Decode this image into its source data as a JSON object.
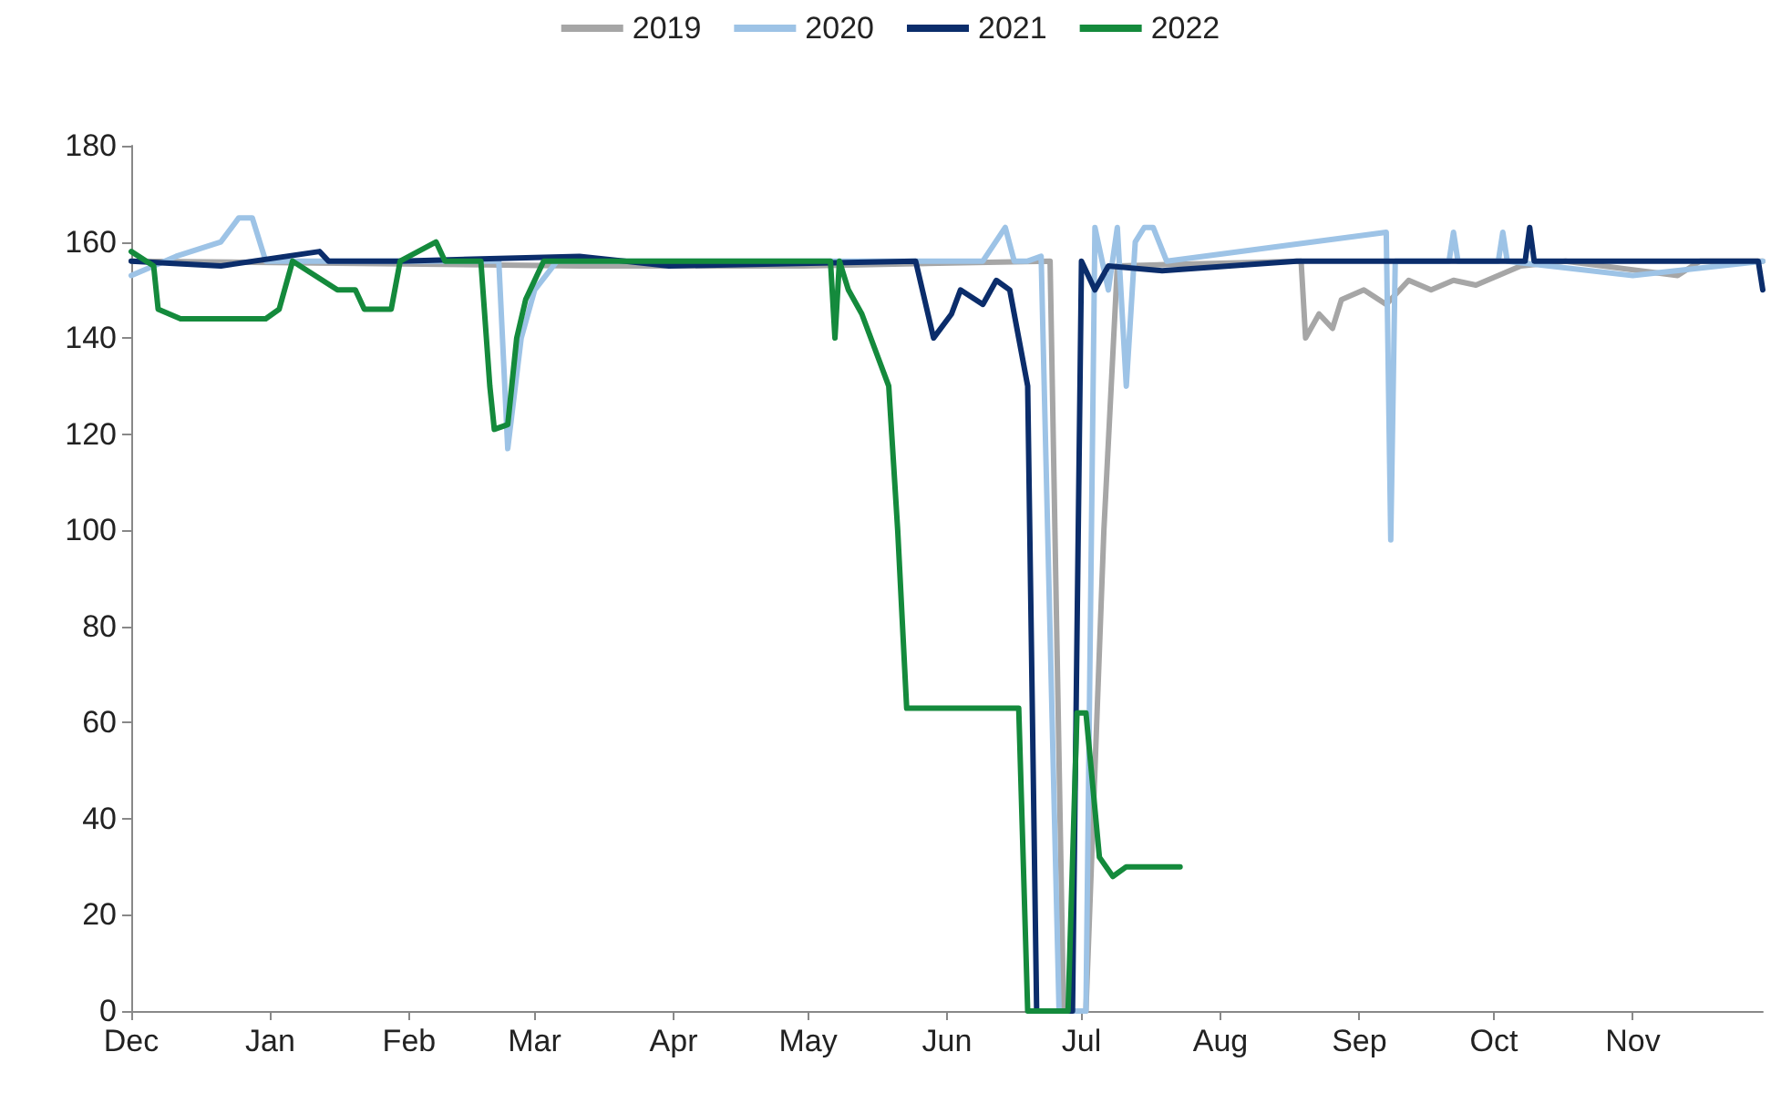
{
  "chart_data": {
    "type": "line",
    "legend": "top",
    "grid": false,
    "marker": "none",
    "line_style": "solid",
    "xlim": [
      "2021-12-01",
      "2022-11-30"
    ],
    "ylim": [
      0,
      180
    ],
    "xticks": [
      {
        "value": "2021-12-01",
        "label": "Dec"
      },
      {
        "value": "2022-01-01",
        "label": "Jan"
      },
      {
        "value": "2022-02-01",
        "label": "Feb"
      },
      {
        "value": "2022-03-01",
        "label": "Mar"
      },
      {
        "value": "2022-04-01",
        "label": "Apr"
      },
      {
        "value": "2022-05-01",
        "label": "May"
      },
      {
        "value": "2022-06-01",
        "label": "Jun"
      },
      {
        "value": "2022-07-01",
        "label": "Jul"
      },
      {
        "value": "2022-08-01",
        "label": "Aug"
      },
      {
        "value": "2022-09-01",
        "label": "Sep"
      },
      {
        "value": "2022-10-01",
        "label": "Oct"
      },
      {
        "value": "2022-11-01",
        "label": "Nov"
      }
    ],
    "yticks": [
      0,
      20,
      40,
      60,
      80,
      100,
      120,
      140,
      160,
      180
    ],
    "series": [
      {
        "name": "2019",
        "color": "#a6a6a6",
        "x": [
          "2021-12-01",
          "2022-03-11",
          "2022-04-30",
          "2022-06-24",
          "2022-06-27",
          "2022-07-02",
          "2022-07-06",
          "2022-07-09",
          "2022-08-19",
          "2022-08-20",
          "2022-08-23",
          "2022-08-26",
          "2022-08-28",
          "2022-09-02",
          "2022-09-07",
          "2022-09-12",
          "2022-09-17",
          "2022-09-22",
          "2022-09-27",
          "2022-10-02",
          "2022-10-07",
          "2022-10-17",
          "2022-11-11",
          "2022-11-16",
          "2022-11-30"
        ],
        "values": [
          156,
          155,
          155,
          156,
          0,
          0,
          100,
          155,
          156,
          140,
          145,
          142,
          148,
          150,
          147,
          152,
          150,
          152,
          151,
          153,
          155,
          156,
          153,
          156,
          156
        ]
      },
      {
        "name": "2020",
        "color": "#9dc3e6",
        "x": [
          "2021-12-01",
          "2021-12-11",
          "2021-12-21",
          "2021-12-25",
          "2021-12-28",
          "2021-12-31",
          "2022-02-21",
          "2022-02-23",
          "2022-02-26",
          "2022-03-01",
          "2022-03-06",
          "2022-06-09",
          "2022-06-14",
          "2022-06-16",
          "2022-06-19",
          "2022-06-22",
          "2022-06-26",
          "2022-07-02",
          "2022-07-04",
          "2022-07-07",
          "2022-07-09",
          "2022-07-11",
          "2022-07-13",
          "2022-07-15",
          "2022-07-17",
          "2022-07-20",
          "2022-09-07",
          "2022-09-08",
          "2022-09-09",
          "2022-09-21",
          "2022-09-22",
          "2022-09-23",
          "2022-10-02",
          "2022-10-03",
          "2022-10-04",
          "2022-11-01",
          "2022-11-30"
        ],
        "values": [
          153,
          157,
          160,
          165,
          165,
          156,
          156,
          117,
          140,
          150,
          156,
          156,
          163,
          156,
          156,
          157,
          0,
          0,
          163,
          150,
          163,
          130,
          160,
          163,
          163,
          156,
          162,
          98,
          156,
          156,
          162,
          156,
          156,
          162,
          156,
          153,
          156
        ]
      },
      {
        "name": "2021",
        "color": "#0b2d6b",
        "x": [
          "2021-12-01",
          "2021-12-21",
          "2022-01-12",
          "2022-01-14",
          "2022-01-30",
          "2022-03-11",
          "2022-03-31",
          "2022-05-25",
          "2022-05-29",
          "2022-06-02",
          "2022-06-04",
          "2022-06-09",
          "2022-06-12",
          "2022-06-15",
          "2022-06-17",
          "2022-06-19",
          "2022-06-21",
          "2022-06-29",
          "2022-07-01",
          "2022-07-04",
          "2022-07-07",
          "2022-07-19",
          "2022-08-18",
          "2022-10-08",
          "2022-10-09",
          "2022-10-10",
          "2022-11-06",
          "2022-11-29",
          "2022-11-30"
        ],
        "values": [
          156,
          155,
          158,
          156,
          156,
          157,
          155,
          156,
          140,
          145,
          150,
          147,
          152,
          150,
          140,
          130,
          0,
          0,
          156,
          150,
          155,
          154,
          156,
          156,
          163,
          156,
          156,
          156,
          150
        ]
      },
      {
        "name": "2022",
        "color": "#148a3c",
        "x": [
          "2021-12-01",
          "2021-12-06",
          "2021-12-07",
          "2021-12-12",
          "2021-12-31",
          "2022-01-03",
          "2022-01-06",
          "2022-01-16",
          "2022-01-20",
          "2022-01-22",
          "2022-01-28",
          "2022-01-30",
          "2022-02-07",
          "2022-02-09",
          "2022-02-17",
          "2022-02-19",
          "2022-02-20",
          "2022-02-23",
          "2022-02-25",
          "2022-02-27",
          "2022-03-03",
          "2022-05-06",
          "2022-05-07",
          "2022-05-08",
          "2022-05-10",
          "2022-05-13",
          "2022-05-17",
          "2022-05-19",
          "2022-05-21",
          "2022-05-23",
          "2022-06-17",
          "2022-06-19",
          "2022-06-28",
          "2022-06-30",
          "2022-07-02",
          "2022-07-05",
          "2022-07-08",
          "2022-07-11",
          "2022-07-23"
        ],
        "values": [
          158,
          155,
          146,
          144,
          144,
          146,
          156,
          150,
          150,
          146,
          146,
          156,
          160,
          156,
          156,
          130,
          121,
          122,
          140,
          148,
          156,
          156,
          140,
          156,
          150,
          145,
          135,
          130,
          100,
          63,
          63,
          0,
          0,
          62,
          62,
          32,
          28,
          30,
          30
        ]
      }
    ]
  }
}
